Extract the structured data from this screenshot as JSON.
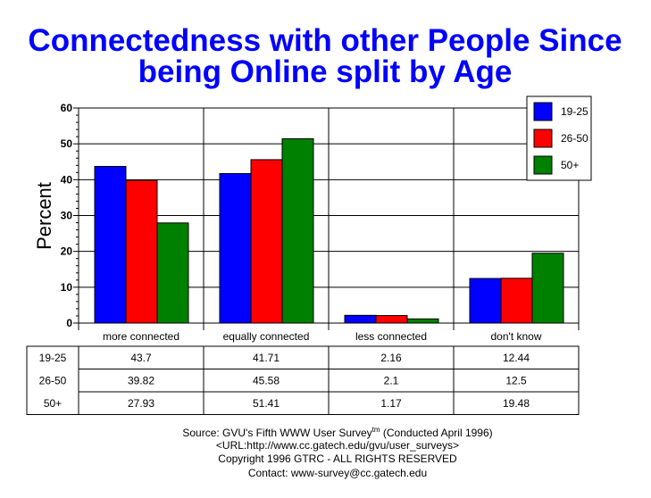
{
  "chart_data": {
    "type": "bar",
    "title_lines": [
      "Connectedness with other People Since",
      "being Online split by Age"
    ],
    "ylabel": "Percent",
    "xlabel": "",
    "ylim": [
      0,
      60
    ],
    "yticks": [
      0,
      10,
      20,
      30,
      40,
      50,
      60
    ],
    "grid": true,
    "legend_position": "top-right",
    "categories": [
      "more connected",
      "equally connected",
      "less connected",
      "don't know"
    ],
    "series": [
      {
        "name": "19-25",
        "color": "#0000ff",
        "values": [
          43.7,
          41.71,
          2.16,
          12.44
        ],
        "labels": [
          "43.7",
          "41.71",
          "2.16",
          "12.44"
        ]
      },
      {
        "name": "26-50",
        "color": "#ff0000",
        "values": [
          39.82,
          45.58,
          2.1,
          12.5
        ],
        "labels": [
          "39.82",
          "45.58",
          "2.1",
          "12.5"
        ]
      },
      {
        "name": "50+",
        "color": "#008000",
        "values": [
          27.93,
          51.41,
          1.17,
          19.48
        ],
        "labels": [
          "27.93",
          "51.41",
          "1.17",
          "19.48"
        ]
      }
    ]
  },
  "footer": {
    "source_prefix": "Source: GVU's Fifth WWW User Survey",
    "source_tm": "tm",
    "source_suffix": "  (Conducted April 1996)",
    "url": "<URL:http://www.cc.gatech.edu/gvu/user_surveys>",
    "copyright": "Copyright 1996 GTRC -  ALL RIGHTS RESERVED",
    "contact": "Contact: www-survey@cc.gatech.edu"
  },
  "colors": {
    "title": "#0000ff"
  }
}
